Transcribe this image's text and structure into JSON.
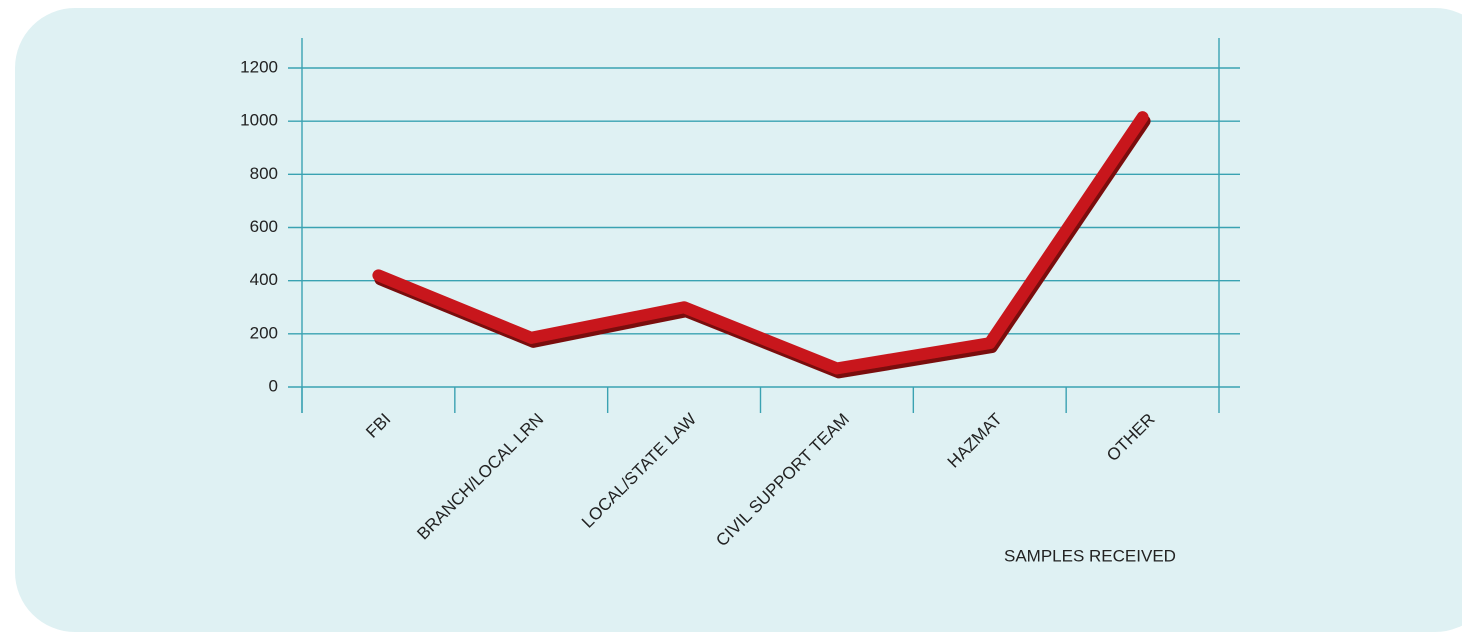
{
  "chart_data": {
    "type": "line",
    "categories": [
      "FBI",
      "BRANCH/LOCAL LRN",
      "LOCAL/STATE LAW",
      "CIVIL SUPPORT TEAM",
      "HAZMAT",
      "OTHER"
    ],
    "series": [
      {
        "name": "SAMPLES RECEIVED",
        "color": "#c8171e",
        "values": [
          420,
          185,
          300,
          70,
          165,
          1015
        ]
      }
    ],
    "ylim": [
      0,
      1200
    ],
    "yticks": [
      0,
      200,
      400,
      600,
      800,
      1000,
      1200
    ],
    "grid": true
  }
}
